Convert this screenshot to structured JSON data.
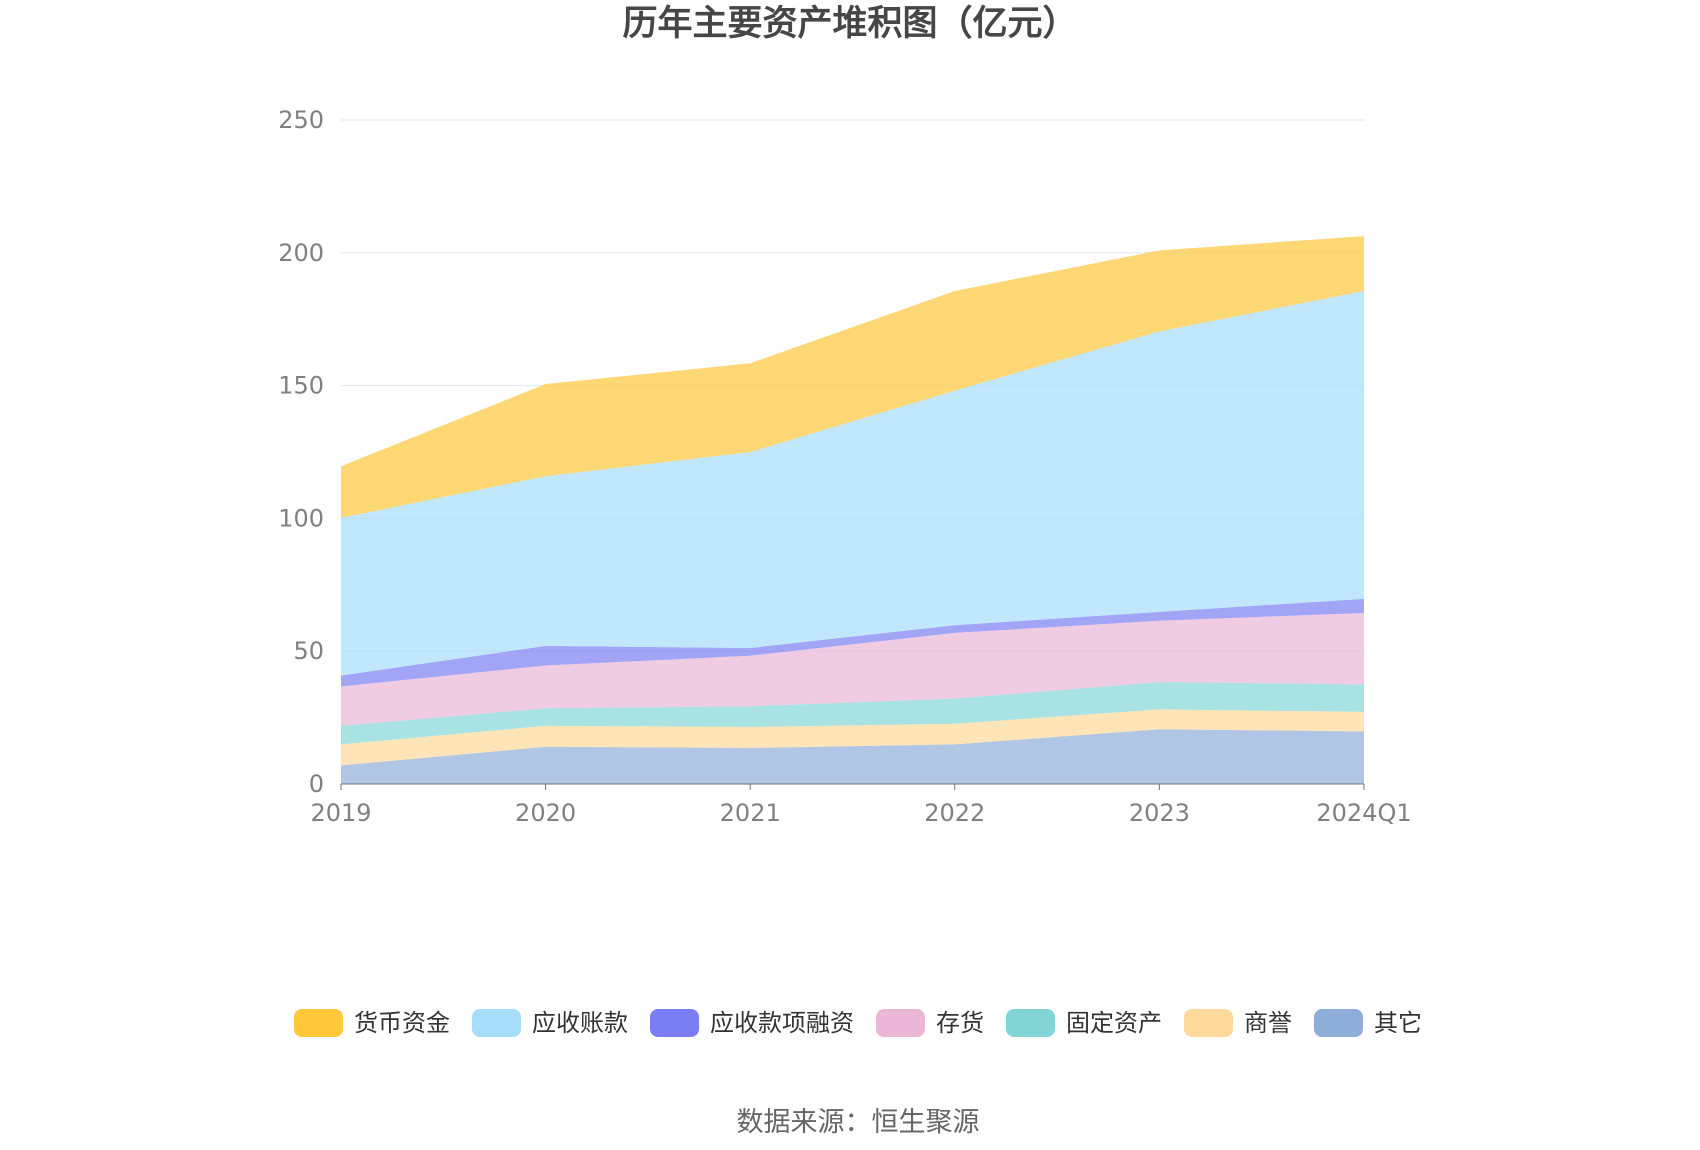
{
  "chart_data": {
    "type": "area",
    "stacked": true,
    "title": "历年主要资产堆积图（亿元）",
    "categories": [
      "2019",
      "2020",
      "2021",
      "2022",
      "2023",
      "2024Q1"
    ],
    "yticks": [
      0,
      50,
      100,
      150,
      200,
      250
    ],
    "ylim": [
      0,
      250
    ],
    "grid": true,
    "legend_position": "bottom",
    "series": [
      {
        "name": "货币资金",
        "color": "#FFC73A",
        "values": [
          19.4,
          34.7,
          33.4,
          37.5,
          30.5,
          20.7
        ]
      },
      {
        "name": "应收账款",
        "color": "#A5DDFA",
        "values": [
          59.4,
          63.9,
          73.8,
          88.3,
          105.6,
          115.9
        ]
      },
      {
        "name": "应收款项融资",
        "color": "#7A7EF2",
        "values": [
          4.1,
          7.4,
          2.9,
          2.9,
          3.3,
          5.3
        ]
      },
      {
        "name": "存货",
        "color": "#EAB7D7",
        "values": [
          14.8,
          16.1,
          19.0,
          24.7,
          23.1,
          26.9
        ]
      },
      {
        "name": "固定资产",
        "color": "#83D5D5",
        "values": [
          7.0,
          6.6,
          7.8,
          9.5,
          10.3,
          10.3
        ]
      },
      {
        "name": "商誉",
        "color": "#FFD99A",
        "values": [
          7.9,
          7.9,
          7.9,
          7.8,
          7.5,
          7.4
        ]
      },
      {
        "name": "其它",
        "color": "#8EAED9",
        "values": [
          7.0,
          14.0,
          13.6,
          14.9,
          20.6,
          19.8
        ]
      }
    ]
  },
  "source": "数据来源：恒生聚源"
}
